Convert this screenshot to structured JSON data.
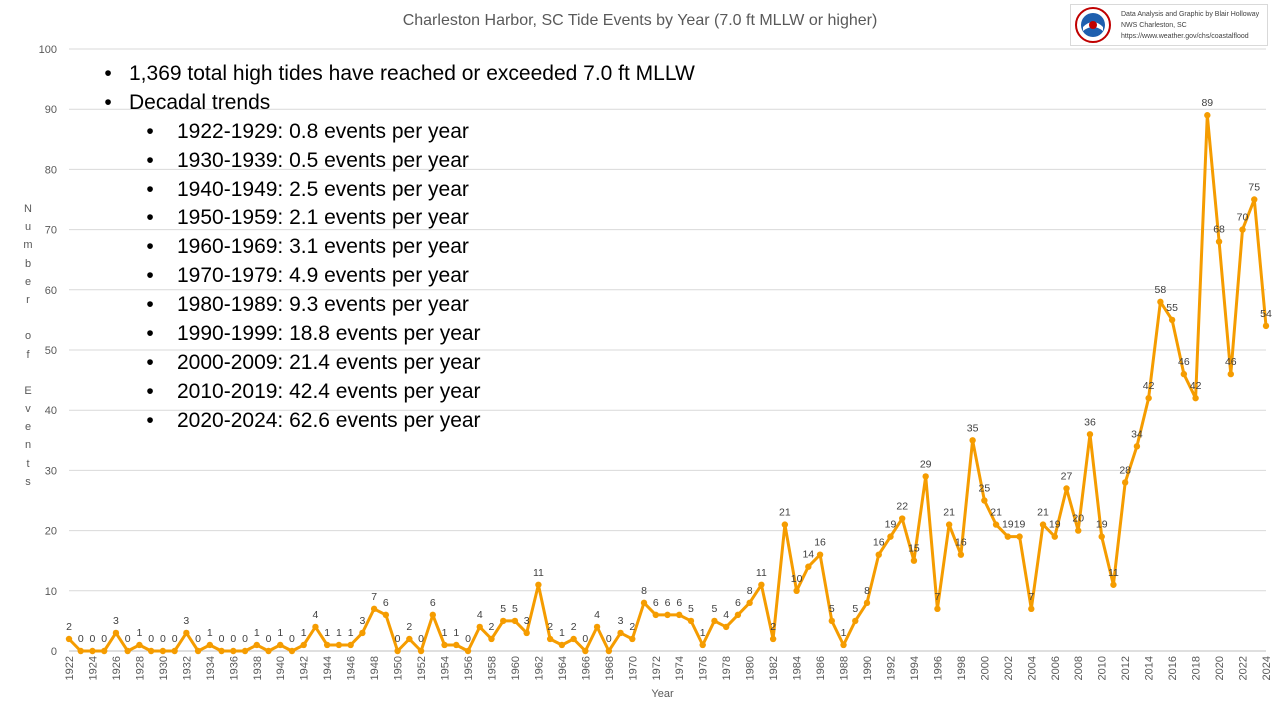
{
  "chart_data": {
    "type": "line",
    "title": "Charleston Harbor, SC Tide Events by Year (7.0 ft MLLW or higher)",
    "xlabel": "Year",
    "ylabel": "Number of Events",
    "ylim": [
      0,
      100
    ],
    "yticks": [
      0,
      10,
      20,
      30,
      40,
      50,
      60,
      70,
      80,
      90,
      100
    ],
    "grid": "horizontal",
    "legend": "none",
    "line_color": "#F59C00",
    "x": [
      1922,
      1923,
      1924,
      1925,
      1926,
      1927,
      1928,
      1929,
      1930,
      1931,
      1932,
      1933,
      1934,
      1935,
      1936,
      1937,
      1938,
      1939,
      1940,
      1941,
      1942,
      1943,
      1944,
      1945,
      1946,
      1947,
      1948,
      1949,
      1950,
      1951,
      1952,
      1953,
      1954,
      1955,
      1956,
      1957,
      1958,
      1959,
      1960,
      1961,
      1962,
      1963,
      1964,
      1965,
      1966,
      1967,
      1968,
      1969,
      1970,
      1971,
      1972,
      1973,
      1974,
      1975,
      1976,
      1977,
      1978,
      1979,
      1980,
      1981,
      1982,
      1983,
      1984,
      1985,
      1986,
      1987,
      1988,
      1989,
      1990,
      1991,
      1992,
      1993,
      1994,
      1995,
      1996,
      1997,
      1998,
      1999,
      2000,
      2001,
      2002,
      2003,
      2004,
      2005,
      2006,
      2007,
      2008,
      2009,
      2010,
      2011,
      2012,
      2013,
      2014,
      2015,
      2016,
      2017,
      2018,
      2019,
      2020,
      2021,
      2022,
      2023,
      2024
    ],
    "values": [
      2,
      0,
      0,
      0,
      3,
      0,
      1,
      0,
      0,
      0,
      3,
      0,
      1,
      0,
      0,
      0,
      1,
      0,
      1,
      0,
      1,
      4,
      1,
      1,
      1,
      3,
      7,
      6,
      0,
      2,
      0,
      6,
      1,
      1,
      0,
      4,
      2,
      5,
      5,
      3,
      11,
      2,
      1,
      2,
      0,
      4,
      0,
      3,
      2,
      8,
      6,
      6,
      6,
      5,
      1,
      5,
      4,
      6,
      8,
      11,
      2,
      21,
      10,
      14,
      16,
      5,
      1,
      5,
      8,
      16,
      19,
      22,
      15,
      29,
      7,
      21,
      16,
      35,
      25,
      21,
      19,
      19,
      7,
      21,
      19,
      27,
      20,
      36,
      19,
      11,
      28,
      34,
      42,
      58,
      55,
      46,
      42,
      89,
      68,
      46,
      70,
      75,
      54
    ],
    "xtick_labels": [
      "1922",
      "1924",
      "1926",
      "1928",
      "1930",
      "1932",
      "1934",
      "1936",
      "1938",
      "1940",
      "1942",
      "1944",
      "1946",
      "1948",
      "1950",
      "1952",
      "1954",
      "1956",
      "1958",
      "1960",
      "1962",
      "1964",
      "1966",
      "1968",
      "1970",
      "1972",
      "1974",
      "1976",
      "1978",
      "1980",
      "1982",
      "1984",
      "1986",
      "1988",
      "1990",
      "1992",
      "1994",
      "1996",
      "1998",
      "2000",
      "2002",
      "2004",
      "2006",
      "2008",
      "2010",
      "2012",
      "2014",
      "2016",
      "2018",
      "2020",
      "2022",
      "2024"
    ],
    "annotations": {
      "summary": "1,369 total high tides have reached or exceeded 7.0 ft MLLW",
      "heading": "Decadal trends",
      "trends": [
        "1922-1929: 0.8 events per year",
        "1930-1939: 0.5 events per year",
        "1940-1949: 2.5 events per year",
        "1950-1959: 2.1 events per year",
        "1960-1969: 3.1 events per year",
        "1970-1979: 4.9 events per year",
        "1980-1989: 9.3 events per year",
        "1990-1999: 18.8 events per year",
        "2000-2009: 21.4 events per year",
        "2010-2019: 42.4 events per year",
        "2020-2024: 62.6 events per year"
      ]
    }
  },
  "credit": {
    "line1": "Data Analysis and Graphic by Blair Holloway",
    "line2": "NWS Charleston, SC",
    "line3": "https://www.weather.gov/chs/coastalflood"
  },
  "logo": {
    "icon": "noaa-nws-logo"
  },
  "bullet_glyph": "•"
}
